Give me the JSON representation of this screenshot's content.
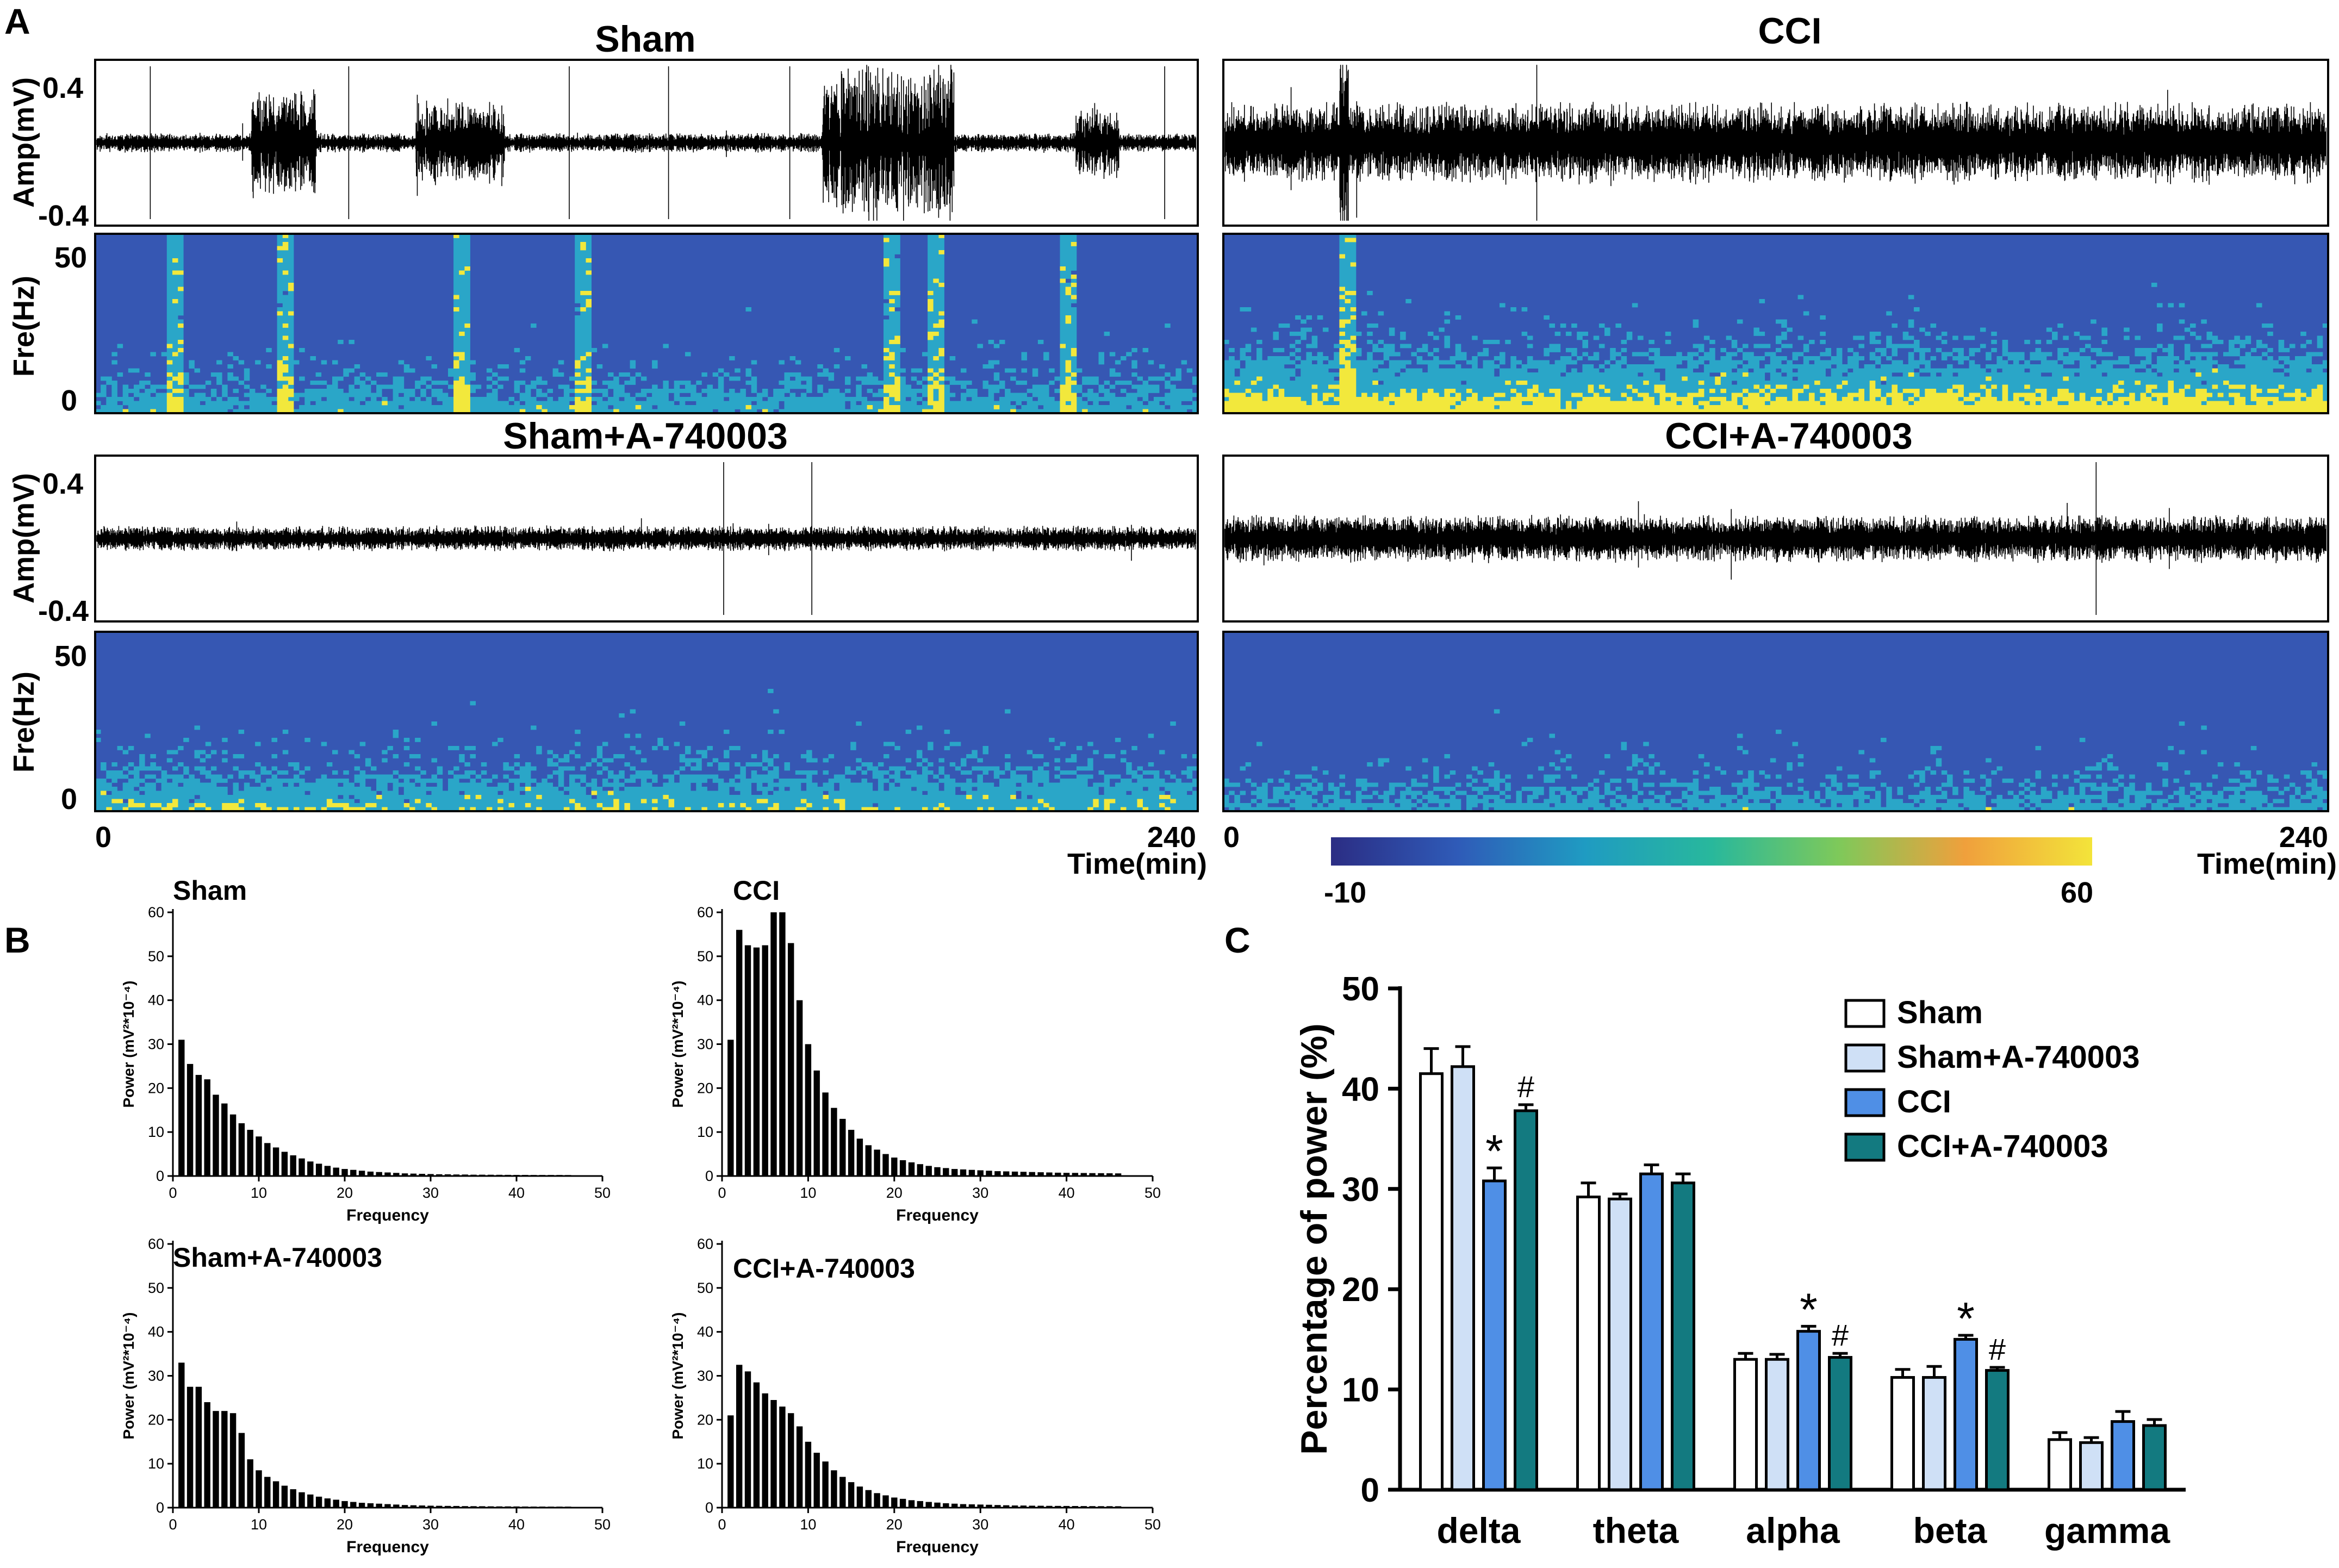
{
  "panel_labels": {
    "a": "A",
    "b": "B",
    "c": "C"
  },
  "panel_a": {
    "groups": [
      {
        "title": "Sham"
      },
      {
        "title": "CCI"
      },
      {
        "title": "Sham+A-740003"
      },
      {
        "title": "CCI+A-740003"
      }
    ],
    "amp_axis": {
      "label": "Amp(mV)",
      "top_tick": "0.4",
      "bottom_tick": "-0.4"
    },
    "freq_axis": {
      "label": "Fre(Hz)",
      "top_tick": "50",
      "bottom_tick": "0"
    },
    "time_axis": {
      "start": "0",
      "end": "240",
      "label": "Time(min)"
    },
    "colorbar": {
      "min": "-10",
      "max": "60",
      "colors": [
        "#2b2d84",
        "#2f5bb8",
        "#1f9bc2",
        "#28b89c",
        "#7ec95a",
        "#f0a03c",
        "#f3e43a"
      ]
    },
    "spectrogram_colors": {
      "background": "#3657b3",
      "mid": "#2aa6c8",
      "high": "#f2e83c"
    }
  },
  "chart_data": [
    {
      "type": "bar",
      "title": "Sham",
      "xlabel": "Frequency",
      "ylabel": "Power (mV²*10⁻⁴)",
      "ylim": [
        0,
        60
      ],
      "xlim": [
        0,
        50
      ],
      "yticks": [
        "0",
        "10",
        "20",
        "30",
        "40",
        "50",
        "60"
      ],
      "xticks": [
        "0",
        "10",
        "20",
        "30",
        "40",
        "50"
      ],
      "x": [
        1,
        2,
        3,
        4,
        5,
        6,
        7,
        8,
        9,
        10,
        11,
        12,
        13,
        14,
        15,
        16,
        17,
        18,
        19,
        20,
        21,
        22,
        23,
        24,
        25,
        26,
        27,
        28,
        29,
        30,
        31,
        32,
        33,
        34,
        35,
        36,
        37,
        38,
        39,
        40,
        41,
        42,
        43,
        44,
        45,
        46
      ],
      "values": [
        31,
        25.5,
        23,
        22,
        18.5,
        16.5,
        14,
        12,
        10.5,
        9,
        7.5,
        6.5,
        5.5,
        4.7,
        4,
        3.3,
        2.8,
        2.3,
        1.9,
        1.6,
        1.4,
        1.2,
        1,
        0.9,
        0.8,
        0.7,
        0.6,
        0.55,
        0.5,
        0.45,
        0.4,
        0.38,
        0.35,
        0.33,
        0.3,
        0.3,
        0.28,
        0.27,
        0.26,
        0.25,
        0.25,
        0.24,
        0.24,
        0.23,
        0.23,
        0.22
      ]
    },
    {
      "type": "bar",
      "title": "CCI",
      "xlabel": "Frequency",
      "ylabel": "Power (mV²*10⁻⁴)",
      "ylim": [
        0,
        60
      ],
      "xlim": [
        0,
        50
      ],
      "yticks": [
        "0",
        "10",
        "20",
        "30",
        "40",
        "50",
        "60"
      ],
      "xticks": [
        "0",
        "10",
        "20",
        "30",
        "40",
        "50"
      ],
      "x": [
        1,
        2,
        3,
        4,
        5,
        6,
        7,
        8,
        9,
        10,
        11,
        12,
        13,
        14,
        15,
        16,
        17,
        18,
        19,
        20,
        21,
        22,
        23,
        24,
        25,
        26,
        27,
        28,
        29,
        30,
        31,
        32,
        33,
        34,
        35,
        36,
        37,
        38,
        39,
        40,
        41,
        42,
        43,
        44,
        45,
        46
      ],
      "values": [
        31,
        56,
        52.5,
        52,
        52.5,
        60,
        60,
        53,
        40,
        30,
        24,
        19,
        15.5,
        13,
        10.5,
        8.5,
        7,
        6,
        5,
        4.2,
        3.6,
        3.1,
        2.7,
        2.3,
        2,
        1.8,
        1.6,
        1.5,
        1.4,
        1.3,
        1.2,
        1.1,
        1.05,
        1,
        0.95,
        0.9,
        0.85,
        0.8,
        0.75,
        0.72,
        0.7,
        0.68,
        0.66,
        0.64,
        0.62,
        0.6
      ]
    },
    {
      "type": "bar",
      "title": "Sham+A-740003",
      "xlabel": "Frequency",
      "ylabel": "Power (mV²*10⁻⁴)",
      "ylim": [
        0,
        60
      ],
      "xlim": [
        0,
        50
      ],
      "yticks": [
        "0",
        "10",
        "20",
        "30",
        "40",
        "50",
        "60"
      ],
      "xticks": [
        "0",
        "10",
        "20",
        "30",
        "40",
        "50"
      ],
      "x": [
        1,
        2,
        3,
        4,
        5,
        6,
        7,
        8,
        9,
        10,
        11,
        12,
        13,
        14,
        15,
        16,
        17,
        18,
        19,
        20,
        21,
        22,
        23,
        24,
        25,
        26,
        27,
        28,
        29,
        30,
        31,
        32,
        33,
        34,
        35,
        36,
        37,
        38,
        39,
        40,
        41,
        42,
        43,
        44,
        45,
        46
      ],
      "values": [
        33,
        27.5,
        27.5,
        24,
        22,
        22,
        21.5,
        17,
        11,
        8.5,
        7,
        6,
        5,
        4.2,
        3.5,
        3,
        2.5,
        2.1,
        1.8,
        1.5,
        1.3,
        1.1,
        1,
        0.9,
        0.8,
        0.7,
        0.6,
        0.55,
        0.5,
        0.45,
        0.42,
        0.4,
        0.38,
        0.35,
        0.33,
        0.32,
        0.3,
        0.29,
        0.28,
        0.27,
        0.26,
        0.25,
        0.25,
        0.24,
        0.24,
        0.23
      ]
    },
    {
      "type": "bar",
      "title": "CCI+A-740003",
      "xlabel": "Frequency",
      "ylabel": "Power (mV²*10⁻⁴)",
      "ylim": [
        0,
        60
      ],
      "xlim": [
        0,
        50
      ],
      "yticks": [
        "0",
        "10",
        "20",
        "30",
        "40",
        "50",
        "60"
      ],
      "xticks": [
        "0",
        "10",
        "20",
        "30",
        "40",
        "50"
      ],
      "x": [
        1,
        2,
        3,
        4,
        5,
        6,
        7,
        8,
        9,
        10,
        11,
        12,
        13,
        14,
        15,
        16,
        17,
        18,
        19,
        20,
        21,
        22,
        23,
        24,
        25,
        26,
        27,
        28,
        29,
        30,
        31,
        32,
        33,
        34,
        35,
        36,
        37,
        38,
        39,
        40,
        41,
        42,
        43,
        44,
        45,
        46
      ],
      "values": [
        21,
        32.5,
        31,
        28.5,
        26,
        24.5,
        23,
        21.5,
        18.5,
        15,
        12.5,
        10.5,
        8.5,
        7,
        5.8,
        4.8,
        4,
        3.3,
        2.8,
        2.3,
        2,
        1.7,
        1.5,
        1.3,
        1.15,
        1,
        0.9,
        0.8,
        0.75,
        0.7,
        0.65,
        0.6,
        0.55,
        0.5,
        0.48,
        0.45,
        0.43,
        0.41,
        0.4,
        0.38,
        0.37,
        0.36,
        0.35,
        0.34,
        0.33,
        0.32
      ]
    },
    {
      "type": "bar",
      "title": "",
      "xlabel": "",
      "ylabel": "Percentage of power (%)",
      "ylim": [
        0,
        50
      ],
      "yticks": [
        "0",
        "10",
        "20",
        "30",
        "40",
        "50"
      ],
      "categories": [
        "delta",
        "theta",
        "alpha",
        "beta",
        "gamma"
      ],
      "series": [
        {
          "name": "Sham",
          "color": "#ffffff",
          "values": [
            41.5,
            29.2,
            13,
            11.2,
            5
          ],
          "errors": [
            2.5,
            1.4,
            0.6,
            0.8,
            0.7
          ]
        },
        {
          "name": "Sham+A-740003",
          "color": "#cfe0f6",
          "values": [
            42.2,
            29,
            13,
            11.2,
            4.7
          ],
          "errors": [
            2,
            0.5,
            0.5,
            1.1,
            0.5
          ]
        },
        {
          "name": "CCI",
          "color": "#4f8fe6",
          "values": [
            30.8,
            31.5,
            15.8,
            15,
            6.8
          ],
          "errors": [
            1.3,
            0.9,
            0.5,
            0.4,
            1
          ]
        },
        {
          "name": "CCI+A-740003",
          "color": "#137a80",
          "values": [
            37.8,
            30.6,
            13.2,
            11.9,
            6.4
          ],
          "errors": [
            0.6,
            0.9,
            0.4,
            0.3,
            0.6
          ]
        }
      ],
      "annotations": [
        {
          "text": "*",
          "category": "delta",
          "series": "CCI"
        },
        {
          "text": "#",
          "category": "delta",
          "series": "CCI+A-740003"
        },
        {
          "text": "*",
          "category": "alpha",
          "series": "CCI"
        },
        {
          "text": "#",
          "category": "alpha",
          "series": "CCI+A-740003"
        },
        {
          "text": "*",
          "category": "beta",
          "series": "CCI"
        },
        {
          "text": "#",
          "category": "beta",
          "series": "CCI+A-740003"
        }
      ]
    }
  ]
}
